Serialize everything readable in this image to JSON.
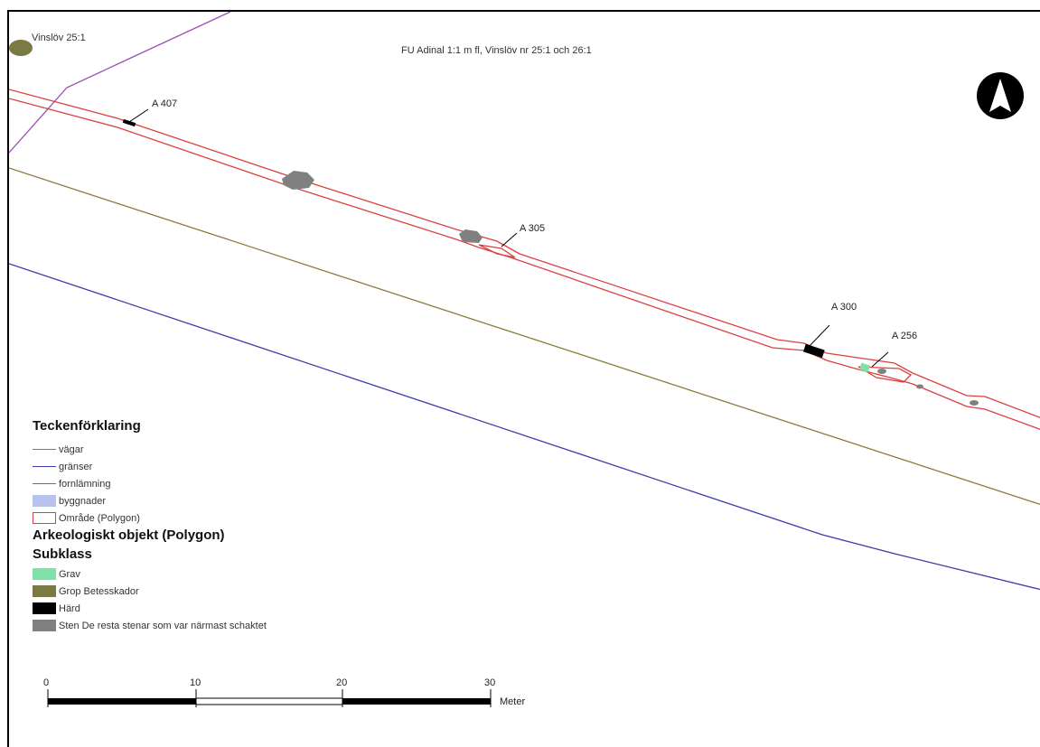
{
  "map": {
    "title": "FU Adinal 1:1 m fl, Vinslöv nr 25:1 och 26:1",
    "corner_label": "Vinslöv 25:1",
    "north_arrow_icon": "north-arrow-icon",
    "feature_labels": [
      "A 407",
      "A 305",
      "A 300",
      "A 256"
    ]
  },
  "colors": {
    "vagar": "#8b7a3e",
    "granser": "#3a3aa8",
    "fornlamning": "#9a4fb0",
    "byggnader": "#b8c4ee",
    "omrade": "#d9413f",
    "grav": "#7fe0a8",
    "grop": "#7b7a44",
    "hard": "#000000",
    "sten": "#808080"
  },
  "legend": {
    "title": "Teckenförklaring",
    "items": [
      {
        "label": "vägar"
      },
      {
        "label": "gränser"
      },
      {
        "label": "fornlämning"
      },
      {
        "label": "byggnader"
      },
      {
        "label": "Område (Polygon)"
      }
    ],
    "object_heading": "Arkeologiskt objekt (Polygon)",
    "subclass_heading": "Subklass",
    "subclasses": [
      {
        "label": "Grav"
      },
      {
        "label": "Grop Betesskador"
      },
      {
        "label": "Härd"
      },
      {
        "label": "Sten De resta stenar som var närmast schaktet"
      }
    ]
  },
  "scale": {
    "ticks": [
      "0",
      "10",
      "20",
      "30"
    ],
    "unit": "Meter"
  }
}
